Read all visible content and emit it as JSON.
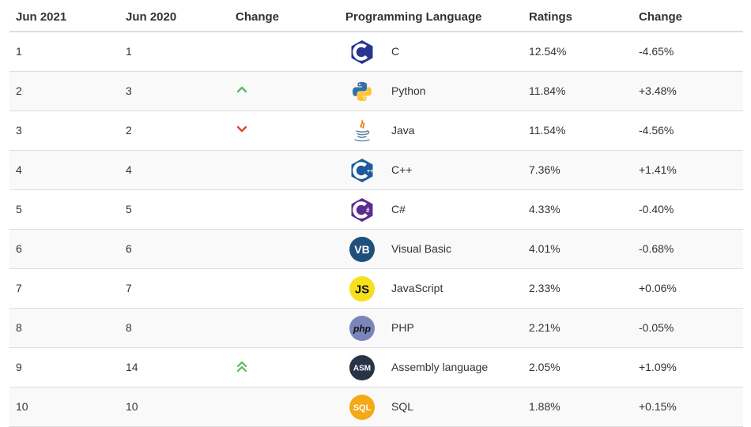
{
  "header": {
    "col1": "Jun 2021",
    "col2": "Jun 2020",
    "col3": "Change",
    "col4": "Programming Language",
    "col5": "Ratings",
    "col6": "Change"
  },
  "rows": [
    {
      "rank2021": "1",
      "rank2020": "1",
      "trend": "none",
      "language": "C",
      "logo": "c-logo-icon",
      "rating": "12.54%",
      "change": "-4.65%"
    },
    {
      "rank2021": "2",
      "rank2020": "3",
      "trend": "up",
      "language": "Python",
      "logo": "python-logo-icon",
      "rating": "11.84%",
      "change": "+3.48%"
    },
    {
      "rank2021": "3",
      "rank2020": "2",
      "trend": "down",
      "language": "Java",
      "logo": "java-logo-icon",
      "rating": "11.54%",
      "change": "-4.56%"
    },
    {
      "rank2021": "4",
      "rank2020": "4",
      "trend": "none",
      "language": "C++",
      "logo": "cpp-logo-icon",
      "rating": "7.36%",
      "change": "+1.41%"
    },
    {
      "rank2021": "5",
      "rank2020": "5",
      "trend": "none",
      "language": "C#",
      "logo": "csharp-logo-icon",
      "rating": "4.33%",
      "change": "-0.40%"
    },
    {
      "rank2021": "6",
      "rank2020": "6",
      "trend": "none",
      "language": "Visual Basic",
      "logo": "visual-basic-logo-icon",
      "logo_text": "VB",
      "rating": "4.01%",
      "change": "-0.68%"
    },
    {
      "rank2021": "7",
      "rank2020": "7",
      "trend": "none",
      "language": "JavaScript",
      "logo": "javascript-logo-icon",
      "logo_text": "JS",
      "rating": "2.33%",
      "change": "+0.06%"
    },
    {
      "rank2021": "8",
      "rank2020": "8",
      "trend": "none",
      "language": "PHP",
      "logo": "php-logo-icon",
      "logo_text": "php",
      "rating": "2.21%",
      "change": "-0.05%"
    },
    {
      "rank2021": "9",
      "rank2020": "14",
      "trend": "double-up",
      "language": "Assembly language",
      "logo": "assembly-logo-icon",
      "logo_text": "ASM",
      "rating": "2.05%",
      "change": "+1.09%"
    },
    {
      "rank2021": "10",
      "rank2020": "10",
      "trend": "none",
      "language": "SQL",
      "logo": "sql-logo-icon",
      "logo_text": "SQL",
      "rating": "1.88%",
      "change": "+0.15%"
    }
  ],
  "colors": {
    "up": "#5cb85c",
    "down": "#d9472b",
    "c_blue": "#283593",
    "cpp_blue": "#1e5a9c",
    "csharp_purple": "#5c2d91",
    "vb_blue": "#1f4f7a",
    "js_yellow": "#f7df1e",
    "php_purple": "#7a86b8",
    "asm_dark": "#283347",
    "sql_orange": "#f4a916"
  }
}
